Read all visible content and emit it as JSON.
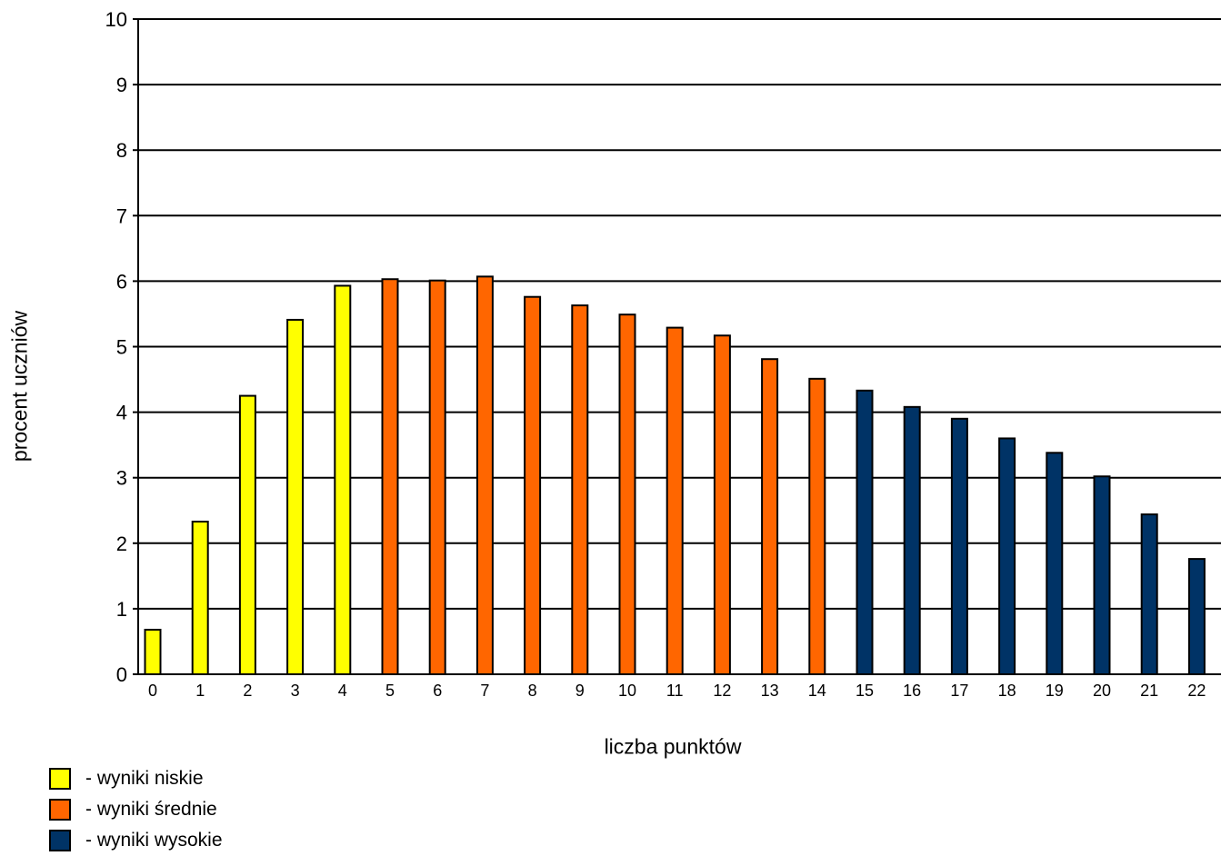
{
  "chart_data": {
    "type": "bar",
    "xlabel": "liczba punktów",
    "ylabel": "procent uczniów",
    "ylim": [
      0,
      10
    ],
    "yticks": [
      "0",
      "1",
      "2",
      "3",
      "4",
      "5",
      "6",
      "7",
      "8",
      "9",
      "10"
    ],
    "grid": true,
    "categories": [
      "0",
      "1",
      "2",
      "3",
      "4",
      "5",
      "6",
      "7",
      "8",
      "9",
      "10",
      "11",
      "12",
      "13",
      "14",
      "15",
      "16",
      "17",
      "18",
      "19",
      "20",
      "21",
      "22"
    ],
    "values": [
      0.68,
      2.33,
      4.25,
      5.41,
      5.93,
      6.03,
      6.01,
      6.07,
      5.76,
      5.63,
      5.49,
      5.29,
      5.17,
      4.81,
      4.51,
      4.33,
      4.08,
      3.9,
      3.6,
      3.38,
      3.02,
      2.44,
      1.76
    ],
    "groups": [
      "low",
      "low",
      "low",
      "low",
      "low",
      "mid",
      "mid",
      "mid",
      "mid",
      "mid",
      "mid",
      "mid",
      "mid",
      "mid",
      "mid",
      "high",
      "high",
      "high",
      "high",
      "high",
      "high",
      "high",
      "high"
    ],
    "colors": {
      "low": "#ffff00",
      "mid": "#ff6600",
      "high": "#003366"
    },
    "legend_position": "bottom-left",
    "legend": [
      {
        "key": "low",
        "label": "- wyniki niskie"
      },
      {
        "key": "mid",
        "label": "- wyniki średnie"
      },
      {
        "key": "high",
        "label": "- wyniki wysokie"
      }
    ]
  }
}
